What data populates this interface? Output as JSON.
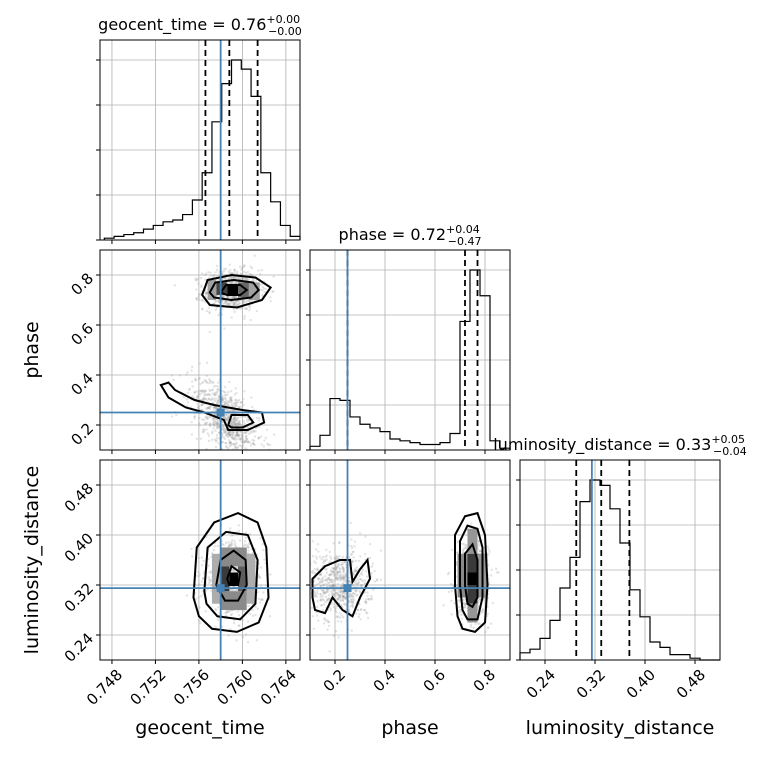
{
  "chart_data": {
    "type": "corner",
    "parameters": [
      "geocent_time",
      "phase",
      "luminosity_distance"
    ],
    "axis_labels": {
      "geocent_time": "geocent_time",
      "phase": "phase",
      "luminosity_distance": "luminosity_distance"
    },
    "ranges": {
      "geocent_time": [
        0.7469,
        0.7653
      ],
      "phase": [
        0.1,
        0.9
      ],
      "luminosity_distance": [
        0.2,
        0.52
      ]
    },
    "ticks": {
      "geocent_time": {
        "values": [
          0.748,
          0.752,
          0.756,
          0.76,
          0.764
        ],
        "labels": [
          "0.748",
          "0.752",
          "0.756",
          "0.760",
          "0.764"
        ]
      },
      "phase": {
        "values": [
          0.2,
          0.4,
          0.6,
          0.8
        ],
        "labels": [
          "0.2",
          "0.4",
          "0.6",
          "0.8"
        ]
      },
      "luminosity_distance": {
        "values": [
          0.24,
          0.32,
          0.4,
          0.48
        ],
        "labels": [
          "0.24",
          "0.32",
          "0.40",
          "0.48"
        ]
      }
    },
    "truths": {
      "geocent_time": 0.758,
      "phase": 0.25,
      "luminosity_distance": 0.315
    },
    "titles": [
      {
        "param": "geocent_time",
        "text": "geocent_time = 0.76",
        "upper": "+0.00",
        "lower": "−0.00"
      },
      {
        "param": "phase",
        "text": "phase = 0.72",
        "upper": "+0.04",
        "lower": "−0.47"
      },
      {
        "param": "luminosity_distance",
        "text": "luminosity_distance = 0.33",
        "upper": "+0.05",
        "lower": "−0.04"
      }
    ],
    "quantiles": {
      "geocent_time": [
        0.7566,
        0.7588,
        0.7614
      ],
      "phase": [
        0.25,
        0.72,
        0.77
      ],
      "luminosity_distance": [
        0.29,
        0.33,
        0.375
      ]
    },
    "histograms": {
      "geocent_time": {
        "edges": [
          0.7473,
          0.7482,
          0.7491,
          0.75,
          0.7509,
          0.7518,
          0.7527,
          0.7536,
          0.7545,
          0.7554,
          0.7563,
          0.7572,
          0.7581,
          0.759,
          0.7599,
          0.7608,
          0.7617,
          0.7626,
          0.7635,
          0.7644,
          0.7653
        ],
        "counts": [
          0.01,
          0.02,
          0.03,
          0.04,
          0.06,
          0.08,
          0.1,
          0.11,
          0.14,
          0.22,
          0.37,
          0.65,
          0.86,
          0.99,
          0.94,
          0.79,
          0.37,
          0.21,
          0.08,
          0.02
        ]
      },
      "phase": {
        "edges": [
          0.1,
          0.14,
          0.18,
          0.22,
          0.26,
          0.3,
          0.34,
          0.38,
          0.42,
          0.46,
          0.5,
          0.54,
          0.58,
          0.62,
          0.66,
          0.7,
          0.74,
          0.78,
          0.82,
          0.86,
          0.9
        ],
        "counts": [
          0.02,
          0.08,
          0.28,
          0.27,
          0.18,
          0.14,
          0.12,
          0.1,
          0.06,
          0.05,
          0.04,
          0.03,
          0.03,
          0.04,
          0.09,
          0.7,
          0.98,
          0.84,
          0.05,
          0.01
        ]
      },
      "luminosity_distance": {
        "edges": [
          0.2,
          0.216,
          0.232,
          0.248,
          0.264,
          0.28,
          0.296,
          0.312,
          0.328,
          0.344,
          0.36,
          0.376,
          0.392,
          0.408,
          0.424,
          0.44,
          0.456,
          0.472,
          0.488,
          0.504,
          0.52
        ],
        "counts": [
          0.04,
          0.06,
          0.12,
          0.22,
          0.4,
          0.57,
          0.88,
          1.0,
          0.97,
          0.84,
          0.65,
          0.39,
          0.24,
          0.1,
          0.07,
          0.03,
          0.03,
          0.01,
          0.0,
          0.0
        ]
      }
    },
    "pairs": [
      {
        "x": "geocent_time",
        "y": "phase",
        "density_peaks": [
          [
            0.759,
            0.74
          ],
          [
            0.7585,
            0.22
          ]
        ],
        "density_cells": [
          {
            "x": [
              0.7586,
              0.7596
            ],
            "y": [
              0.72,
              0.76
            ],
            "level": 1.0
          },
          {
            "x": [
              0.7576,
              0.7586
            ],
            "y": [
              0.72,
              0.77
            ],
            "level": 0.7
          },
          {
            "x": [
              0.7596,
              0.7606
            ],
            "y": [
              0.71,
              0.77
            ],
            "level": 0.55
          },
          {
            "x": [
              0.7568,
              0.7576
            ],
            "y": [
              0.7,
              0.78
            ],
            "level": 0.3
          },
          {
            "x": [
              0.7606,
              0.7616
            ],
            "y": [
              0.7,
              0.77
            ],
            "level": 0.3
          }
        ],
        "contours": [
          [
            [
              0.7563,
              0.72
            ],
            [
              0.7568,
              0.78
            ],
            [
              0.759,
              0.8
            ],
            [
              0.7612,
              0.79
            ],
            [
              0.7626,
              0.75
            ],
            [
              0.7618,
              0.7
            ],
            [
              0.7595,
              0.67
            ],
            [
              0.757,
              0.68
            ],
            [
              0.7563,
              0.72
            ]
          ],
          [
            [
              0.757,
              0.73
            ],
            [
              0.7575,
              0.77
            ],
            [
              0.7592,
              0.78
            ],
            [
              0.761,
              0.77
            ],
            [
              0.7615,
              0.74
            ],
            [
              0.7608,
              0.71
            ],
            [
              0.759,
              0.7
            ],
            [
              0.7574,
              0.71
            ],
            [
              0.757,
              0.73
            ]
          ],
          [
            [
              0.758,
              0.73
            ],
            [
              0.7585,
              0.76
            ],
            [
              0.7598,
              0.76
            ],
            [
              0.7604,
              0.74
            ],
            [
              0.7598,
              0.72
            ],
            [
              0.7586,
              0.72
            ],
            [
              0.758,
              0.73
            ]
          ],
          [
            [
              0.7532,
              0.37
            ],
            [
              0.7538,
              0.34
            ],
            [
              0.7556,
              0.3
            ],
            [
              0.7574,
              0.28
            ],
            [
              0.76,
              0.26
            ],
            [
              0.7618,
              0.25
            ],
            [
              0.762,
              0.21
            ],
            [
              0.7605,
              0.18
            ],
            [
              0.7587,
              0.18
            ],
            [
              0.7583,
              0.22
            ],
            [
              0.7565,
              0.25
            ],
            [
              0.7548,
              0.27
            ],
            [
              0.7532,
              0.31
            ],
            [
              0.7525,
              0.36
            ],
            [
              0.7532,
              0.37
            ]
          ],
          [
            [
              0.7587,
              0.2
            ],
            [
              0.759,
              0.24
            ],
            [
              0.7605,
              0.24
            ],
            [
              0.761,
              0.21
            ],
            [
              0.76,
              0.19
            ],
            [
              0.759,
              0.19
            ],
            [
              0.7587,
              0.2
            ]
          ]
        ]
      },
      {
        "x": "geocent_time",
        "y": "luminosity_distance",
        "density_peaks": [
          [
            0.7592,
            0.33
          ]
        ],
        "density_cells": [
          {
            "x": [
              0.7588,
              0.7596
            ],
            "y": [
              0.32,
              0.34
            ],
            "level": 1.0
          },
          {
            "x": [
              0.758,
              0.7588
            ],
            "y": [
              0.31,
              0.35
            ],
            "level": 0.75
          },
          {
            "x": [
              0.7596,
              0.7604
            ],
            "y": [
              0.31,
              0.35
            ],
            "level": 0.6
          },
          {
            "x": [
              0.758,
              0.7604
            ],
            "y": [
              0.35,
              0.38
            ],
            "level": 0.4
          },
          {
            "x": [
              0.758,
              0.7604
            ],
            "y": [
              0.28,
              0.31
            ],
            "level": 0.4
          },
          {
            "x": [
              0.7572,
              0.758
            ],
            "y": [
              0.29,
              0.37
            ],
            "level": 0.25
          },
          {
            "x": [
              0.7604,
              0.7612
            ],
            "y": [
              0.29,
              0.37
            ],
            "level": 0.25
          }
        ],
        "contours": [
          [
            [
              0.7555,
              0.3
            ],
            [
              0.7558,
              0.38
            ],
            [
              0.7574,
              0.42
            ],
            [
              0.7596,
              0.435
            ],
            [
              0.7614,
              0.42
            ],
            [
              0.7622,
              0.38
            ],
            [
              0.7624,
              0.3
            ],
            [
              0.7615,
              0.26
            ],
            [
              0.7595,
              0.245
            ],
            [
              0.7572,
              0.25
            ],
            [
              0.756,
              0.27
            ],
            [
              0.7555,
              0.3
            ]
          ],
          [
            [
              0.7565,
              0.31
            ],
            [
              0.7568,
              0.38
            ],
            [
              0.7585,
              0.405
            ],
            [
              0.7605,
              0.4
            ],
            [
              0.7614,
              0.36
            ],
            [
              0.7612,
              0.29
            ],
            [
              0.7598,
              0.265
            ],
            [
              0.7577,
              0.27
            ],
            [
              0.7567,
              0.29
            ],
            [
              0.7565,
              0.31
            ]
          ],
          [
            [
              0.7576,
              0.32
            ],
            [
              0.758,
              0.36
            ],
            [
              0.7592,
              0.375
            ],
            [
              0.7603,
              0.36
            ],
            [
              0.7604,
              0.32
            ],
            [
              0.7596,
              0.295
            ],
            [
              0.7584,
              0.295
            ],
            [
              0.7576,
              0.32
            ]
          ],
          [
            [
              0.7586,
              0.33
            ],
            [
              0.759,
              0.35
            ],
            [
              0.7598,
              0.34
            ],
            [
              0.7596,
              0.32
            ],
            [
              0.7588,
              0.32
            ],
            [
              0.7586,
              0.33
            ]
          ]
        ]
      },
      {
        "x": "phase",
        "y": "luminosity_distance",
        "density_peaks": [
          [
            0.75,
            0.33
          ]
        ],
        "density_cells": [
          {
            "x": [
              0.73,
              0.77
            ],
            "y": [
              0.32,
              0.34
            ],
            "level": 1.0
          },
          {
            "x": [
              0.73,
              0.77
            ],
            "y": [
              0.34,
              0.37
            ],
            "level": 0.75
          },
          {
            "x": [
              0.73,
              0.77
            ],
            "y": [
              0.29,
              0.32
            ],
            "level": 0.75
          },
          {
            "x": [
              0.69,
              0.73
            ],
            "y": [
              0.3,
              0.37
            ],
            "level": 0.4
          },
          {
            "x": [
              0.77,
              0.81
            ],
            "y": [
              0.3,
              0.37
            ],
            "level": 0.35
          },
          {
            "x": [
              0.73,
              0.77
            ],
            "y": [
              0.37,
              0.41
            ],
            "level": 0.35
          },
          {
            "x": [
              0.73,
              0.77
            ],
            "y": [
              0.26,
              0.29
            ],
            "level": 0.35
          }
        ],
        "contours": [
          [
            [
              0.68,
              0.32
            ],
            [
              0.68,
              0.4
            ],
            [
              0.72,
              0.43
            ],
            [
              0.77,
              0.435
            ],
            [
              0.8,
              0.4
            ],
            [
              0.81,
              0.32
            ],
            [
              0.8,
              0.26
            ],
            [
              0.76,
              0.245
            ],
            [
              0.71,
              0.25
            ],
            [
              0.69,
              0.27
            ],
            [
              0.68,
              0.32
            ]
          ],
          [
            [
              0.7,
              0.32
            ],
            [
              0.7,
              0.39
            ],
            [
              0.73,
              0.415
            ],
            [
              0.77,
              0.41
            ],
            [
              0.79,
              0.38
            ],
            [
              0.79,
              0.3
            ],
            [
              0.77,
              0.265
            ],
            [
              0.73,
              0.265
            ],
            [
              0.71,
              0.28
            ],
            [
              0.7,
              0.32
            ]
          ],
          [
            [
              0.72,
              0.32
            ],
            [
              0.72,
              0.37
            ],
            [
              0.75,
              0.385
            ],
            [
              0.77,
              0.36
            ],
            [
              0.77,
              0.3
            ],
            [
              0.75,
              0.285
            ],
            [
              0.73,
              0.29
            ],
            [
              0.72,
              0.32
            ]
          ],
          [
            [
              0.11,
              0.3
            ],
            [
              0.11,
              0.33
            ],
            [
              0.16,
              0.35
            ],
            [
              0.22,
              0.36
            ],
            [
              0.26,
              0.36
            ],
            [
              0.27,
              0.325
            ],
            [
              0.3,
              0.345
            ],
            [
              0.33,
              0.36
            ],
            [
              0.34,
              0.33
            ],
            [
              0.3,
              0.3
            ],
            [
              0.27,
              0.27
            ],
            [
              0.23,
              0.28
            ],
            [
              0.19,
              0.3
            ],
            [
              0.16,
              0.275
            ],
            [
              0.12,
              0.28
            ],
            [
              0.11,
              0.3
            ]
          ]
        ]
      }
    ],
    "grid": true,
    "truth_color": "#4682b4",
    "line_color": "#000000",
    "grid_color": "#b0b0b0"
  }
}
